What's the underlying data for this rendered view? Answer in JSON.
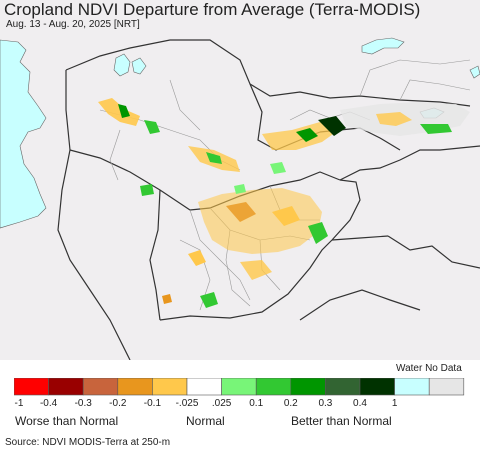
{
  "title": "Cropland NDVI Departure from Average (Terra-MODIS)",
  "subtitle": "Aug. 13 - Aug. 20, 2025 [NRT]",
  "legend": {
    "no_data_label": "Water No Data",
    "swatches": [
      {
        "color": "#ff0000"
      },
      {
        "color": "#990000"
      },
      {
        "color": "#c8643c"
      },
      {
        "color": "#e8961e"
      },
      {
        "color": "#ffc84b"
      },
      {
        "color": "#ffffff"
      },
      {
        "color": "#78f578"
      },
      {
        "color": "#32c832"
      },
      {
        "color": "#009600"
      },
      {
        "color": "#326432"
      },
      {
        "color": "#003200"
      },
      {
        "color": "#c8ffff"
      },
      {
        "color": "#e6e6e6"
      }
    ],
    "ticks": [
      "-1",
      "-0.4",
      "-0.3",
      "-0.2",
      "-0.1",
      "-.025",
      ".025",
      "0.1",
      "0.2",
      "0.3",
      "0.4",
      "1"
    ],
    "categories": {
      "worse": "Worse than Normal",
      "normal": "Normal",
      "better": "Better than Normal"
    }
  },
  "source": "Source: NDVI MODIS-Terra at 250-m",
  "colors": {
    "land": "#f0eef0",
    "water": "#c8ffff",
    "border": "#333333",
    "admin": "#999999"
  }
}
